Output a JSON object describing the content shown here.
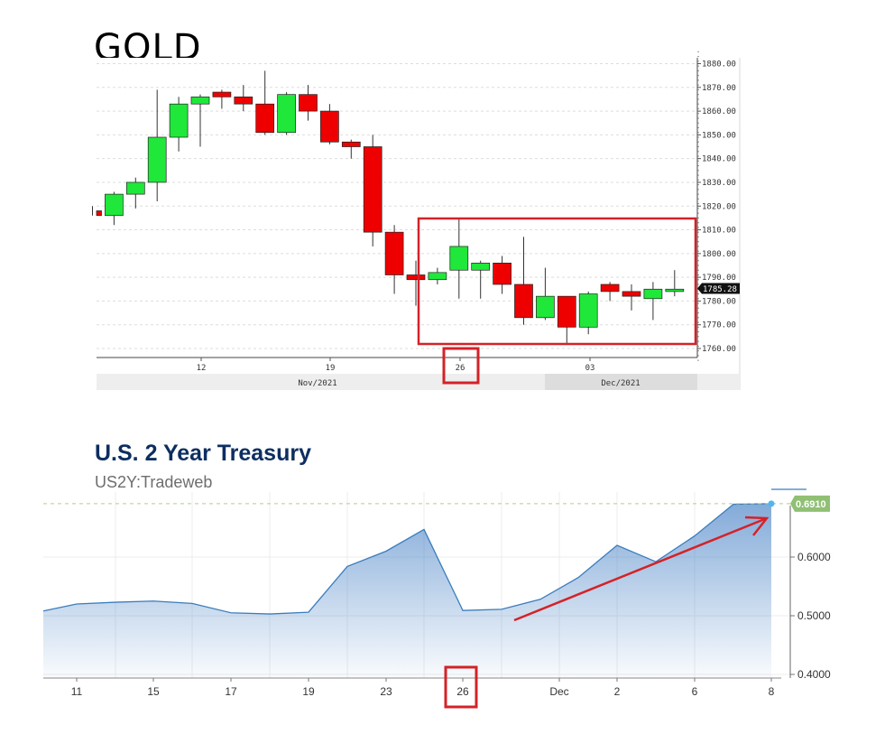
{
  "gold_title": "GOLD",
  "treasury": {
    "title": "U.S. 2 Year Treasury",
    "subtitle": "US2Y:Tradeweb"
  },
  "colors": {
    "up": "#1fe83a",
    "down": "#ee0000",
    "highlight": "#d42328",
    "area": "#4e86c8",
    "treasury_title": "#0c2e60"
  },
  "chart_data": [
    {
      "type": "candlestick",
      "title": "GOLD",
      "ylim": [
        1755,
        1885
      ],
      "y_ticks": [
        "1880.00",
        "1870.00",
        "1860.00",
        "1850.00",
        "1840.00",
        "1830.00",
        "1820.00",
        "1810.00",
        "1800.00",
        "1790.00",
        "1780.00",
        "1770.00",
        "1760.00"
      ],
      "x_tick_labels": [
        "12",
        "19",
        "26",
        "03"
      ],
      "x_period_labels": [
        "Nov/2021",
        "Dec/2021"
      ],
      "last_price_label": "1785.28",
      "candles": [
        {
          "o": 1818,
          "h": 1820,
          "l": 1816,
          "c": 1816
        },
        {
          "o": 1816,
          "h": 1826,
          "l": 1812,
          "c": 1825
        },
        {
          "o": 1825,
          "h": 1832,
          "l": 1819,
          "c": 1830
        },
        {
          "o": 1830,
          "h": 1869,
          "l": 1822,
          "c": 1849
        },
        {
          "o": 1849,
          "h": 1866,
          "l": 1843,
          "c": 1863
        },
        {
          "o": 1863,
          "h": 1867,
          "l": 1845,
          "c": 1866
        },
        {
          "o": 1868,
          "h": 1869,
          "l": 1861,
          "c": 1866
        },
        {
          "o": 1866,
          "h": 1871,
          "l": 1860,
          "c": 1863
        },
        {
          "o": 1863,
          "h": 1877,
          "l": 1850,
          "c": 1851
        },
        {
          "o": 1851,
          "h": 1868,
          "l": 1850,
          "c": 1867
        },
        {
          "o": 1867,
          "h": 1871,
          "l": 1856,
          "c": 1860
        },
        {
          "o": 1860,
          "h": 1863,
          "l": 1846,
          "c": 1847
        },
        {
          "o": 1847,
          "h": 1848,
          "l": 1840,
          "c": 1845
        },
        {
          "o": 1845,
          "h": 1850,
          "l": 1803,
          "c": 1809
        },
        {
          "o": 1809,
          "h": 1812,
          "l": 1783,
          "c": 1791
        },
        {
          "o": 1791,
          "h": 1797,
          "l": 1778,
          "c": 1789
        },
        {
          "o": 1789,
          "h": 1794,
          "l": 1787,
          "c": 1792
        },
        {
          "o": 1793,
          "h": 1815,
          "l": 1781,
          "c": 1803
        },
        {
          "o": 1793,
          "h": 1797,
          "l": 1781,
          "c": 1796
        },
        {
          "o": 1796,
          "h": 1799,
          "l": 1783,
          "c": 1787
        },
        {
          "o": 1787,
          "h": 1807,
          "l": 1770,
          "c": 1773
        },
        {
          "o": 1773,
          "h": 1794,
          "l": 1772,
          "c": 1782
        },
        {
          "o": 1782,
          "h": 1782,
          "l": 1762,
          "c": 1769
        },
        {
          "o": 1769,
          "h": 1784,
          "l": 1766,
          "c": 1783
        },
        {
          "o": 1787,
          "h": 1788,
          "l": 1780,
          "c": 1784
        },
        {
          "o": 1784,
          "h": 1787,
          "l": 1776,
          "c": 1782
        },
        {
          "o": 1781,
          "h": 1788,
          "l": 1772,
          "c": 1785
        },
        {
          "o": 1784,
          "h": 1793,
          "l": 1782,
          "c": 1785
        }
      ]
    },
    {
      "type": "area",
      "title": "U.S. 2 Year Treasury",
      "subtitle": "US2Y:Tradeweb",
      "ylim": [
        0.395,
        0.7
      ],
      "y_ticks": [
        "0.6000",
        "0.5000",
        "0.4000"
      ],
      "x_tick_labels": [
        "11",
        "15",
        "17",
        "19",
        "23",
        "26",
        "Dec",
        "2",
        "6",
        "8"
      ],
      "last_value_label": "0.6910",
      "points": [
        {
          "x": "Nov 10",
          "y": 0.508
        },
        {
          "x": "Nov 11",
          "y": 0.52
        },
        {
          "x": "Nov 12",
          "y": 0.523
        },
        {
          "x": "Nov 15",
          "y": 0.525
        },
        {
          "x": "Nov 16",
          "y": 0.521
        },
        {
          "x": "Nov 17",
          "y": 0.505
        },
        {
          "x": "Nov 18",
          "y": 0.503
        },
        {
          "x": "Nov 19",
          "y": 0.506
        },
        {
          "x": "Nov 22",
          "y": 0.584
        },
        {
          "x": "Nov 23",
          "y": 0.61
        },
        {
          "x": "Nov 24",
          "y": 0.647
        },
        {
          "x": "Nov 26",
          "y": 0.509
        },
        {
          "x": "Nov 29",
          "y": 0.511
        },
        {
          "x": "Nov 30",
          "y": 0.528
        },
        {
          "x": "Dec 1",
          "y": 0.565
        },
        {
          "x": "Dec 2",
          "y": 0.62
        },
        {
          "x": "Dec 3",
          "y": 0.592
        },
        {
          "x": "Dec 6",
          "y": 0.636
        },
        {
          "x": "Dec 7",
          "y": 0.69
        },
        {
          "x": "Dec 8",
          "y": 0.691
        }
      ]
    }
  ]
}
